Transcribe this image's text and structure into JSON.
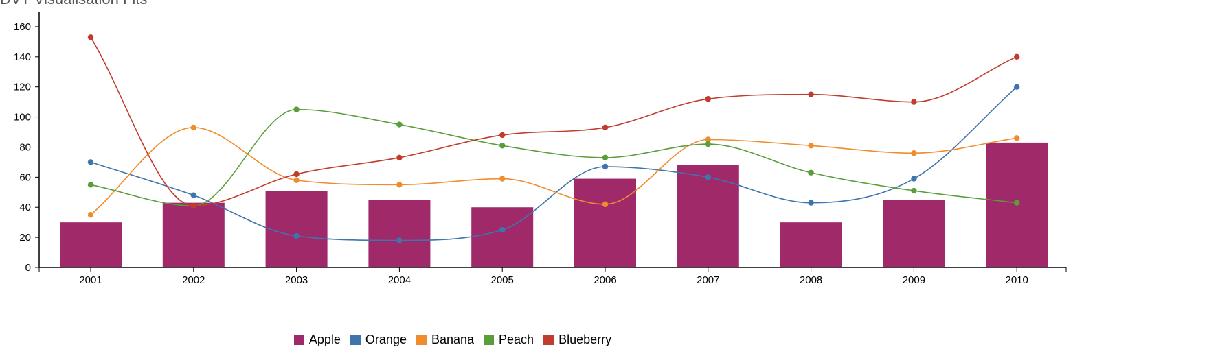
{
  "page": {
    "title": "DVT Visualisation Fits"
  },
  "colors": {
    "Apple": "#a0296a",
    "Orange": "#3e75ad",
    "Banana": "#f08c2c",
    "Peach": "#5a9e3a",
    "Blueberry": "#c13c2d"
  },
  "chart_data": {
    "type": "bar",
    "title": "",
    "xlabel": "",
    "ylabel": "",
    "categories": [
      "2001",
      "2002",
      "2003",
      "2004",
      "2005",
      "2006",
      "2007",
      "2008",
      "2009",
      "2010"
    ],
    "ylim": [
      0,
      170
    ],
    "yticks": [
      0,
      20,
      40,
      60,
      80,
      100,
      120,
      140,
      160
    ],
    "grid": false,
    "legend": "bottom-center",
    "series": [
      {
        "name": "Apple",
        "type": "bar",
        "values": [
          30,
          43,
          51,
          45,
          40,
          59,
          68,
          30,
          45,
          83
        ]
      },
      {
        "name": "Orange",
        "type": "line",
        "values": [
          70,
          48,
          21,
          18,
          25,
          67,
          60,
          43,
          59,
          120
        ]
      },
      {
        "name": "Banana",
        "type": "line",
        "values": [
          35,
          93,
          58,
          55,
          59,
          42,
          85,
          81,
          76,
          86
        ]
      },
      {
        "name": "Peach",
        "type": "line",
        "values": [
          55,
          41,
          105,
          95,
          81,
          73,
          82,
          63,
          51,
          43
        ]
      },
      {
        "name": "Blueberry",
        "type": "line",
        "values": [
          153,
          41,
          62,
          73,
          88,
          93,
          112,
          115,
          110,
          140
        ]
      }
    ]
  }
}
